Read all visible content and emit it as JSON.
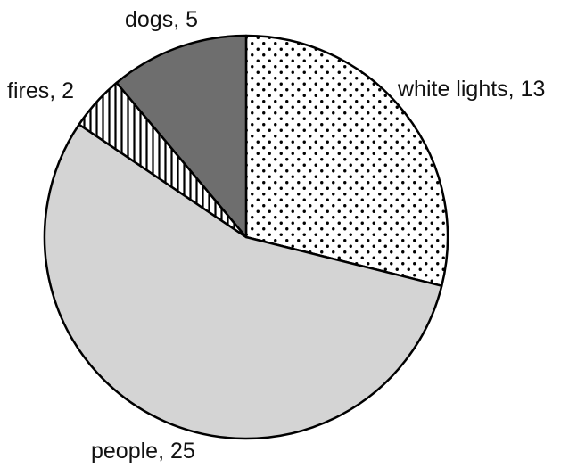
{
  "chart_data": {
    "type": "pie",
    "title": "",
    "slices": [
      {
        "label": "white lights",
        "value": 13,
        "text": "white lights, 13",
        "fill": "url(#dots)"
      },
      {
        "label": "people",
        "value": 25,
        "text": "people, 25",
        "fill": "#d4d4d4"
      },
      {
        "label": "fires",
        "value": 2,
        "text": "fires, 2",
        "fill": "url(#stripes)"
      },
      {
        "label": "dogs",
        "value": 5,
        "text": "dogs, 5",
        "fill": "#6e6e6e"
      }
    ],
    "start": "12 o'clock",
    "direction": "clockwise",
    "legend": "none"
  }
}
